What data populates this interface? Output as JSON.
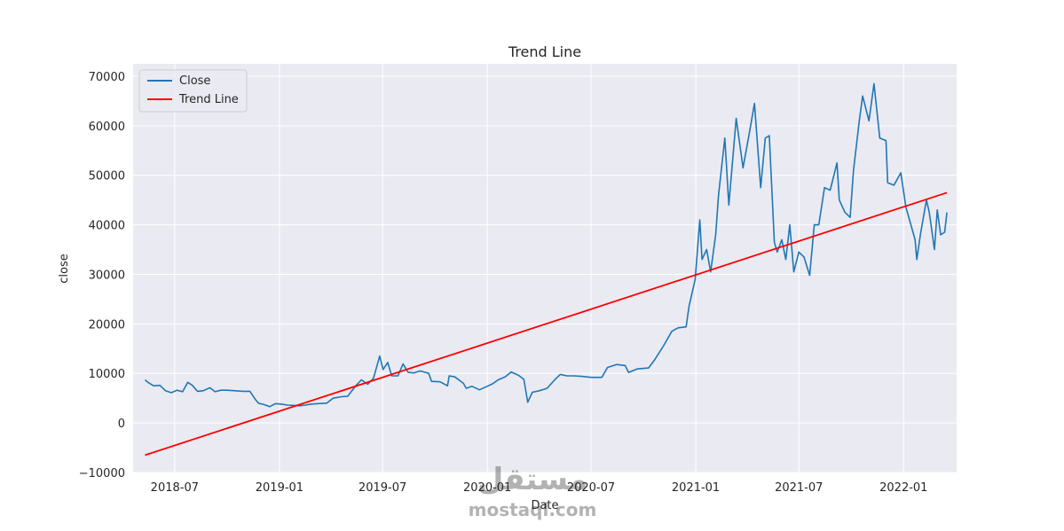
{
  "chart_data": {
    "type": "line",
    "title": "Trend Line",
    "xlabel": "Date",
    "ylabel": "close",
    "xlim": [
      "2018-04-19",
      "2022-04-04"
    ],
    "ylim": [
      -10000,
      72500
    ],
    "grid": true,
    "legend_position": "top-left",
    "x_ticks": [
      {
        "date": "2018-07-01",
        "label": "2018-07"
      },
      {
        "date": "2019-01-01",
        "label": "2019-01"
      },
      {
        "date": "2019-07-01",
        "label": "2019-07"
      },
      {
        "date": "2020-01-01",
        "label": "2020-01"
      },
      {
        "date": "2020-07-01",
        "label": "2020-07"
      },
      {
        "date": "2021-01-01",
        "label": "2021-01"
      },
      {
        "date": "2021-07-01",
        "label": "2021-07"
      },
      {
        "date": "2022-01-01",
        "label": "2022-01"
      }
    ],
    "y_ticks": [
      {
        "value": -10000,
        "label": "−10000"
      },
      {
        "value": 0,
        "label": "0"
      },
      {
        "value": 10000,
        "label": "10000"
      },
      {
        "value": 20000,
        "label": "20000"
      },
      {
        "value": 30000,
        "label": "30000"
      },
      {
        "value": 40000,
        "label": "40000"
      },
      {
        "value": 50000,
        "label": "50000"
      },
      {
        "value": 60000,
        "label": "60000"
      },
      {
        "value": 70000,
        "label": "70000"
      }
    ],
    "series": [
      {
        "name": "Close",
        "color": "#1f77b4",
        "points": [
          [
            "2018-05-10",
            8700
          ],
          [
            "2018-05-15",
            8200
          ],
          [
            "2018-05-25",
            7500
          ],
          [
            "2018-06-05",
            7600
          ],
          [
            "2018-06-15",
            6500
          ],
          [
            "2018-06-25",
            6100
          ],
          [
            "2018-07-05",
            6600
          ],
          [
            "2018-07-15",
            6300
          ],
          [
            "2018-07-24",
            8200
          ],
          [
            "2018-08-01",
            7600
          ],
          [
            "2018-08-10",
            6400
          ],
          [
            "2018-08-20",
            6500
          ],
          [
            "2018-09-01",
            7100
          ],
          [
            "2018-09-10",
            6300
          ],
          [
            "2018-09-20",
            6600
          ],
          [
            "2018-10-01",
            6600
          ],
          [
            "2018-10-15",
            6500
          ],
          [
            "2018-10-30",
            6400
          ],
          [
            "2018-11-10",
            6400
          ],
          [
            "2018-11-20",
            4700
          ],
          [
            "2018-11-25",
            4000
          ],
          [
            "2018-12-05",
            3700
          ],
          [
            "2018-12-15",
            3300
          ],
          [
            "2018-12-25",
            3900
          ],
          [
            "2019-01-05",
            3800
          ],
          [
            "2019-01-15",
            3600
          ],
          [
            "2019-01-25",
            3550
          ],
          [
            "2019-02-05",
            3450
          ],
          [
            "2019-02-15",
            3600
          ],
          [
            "2019-02-25",
            3800
          ],
          [
            "2019-03-10",
            3900
          ],
          [
            "2019-03-25",
            4000
          ],
          [
            "2019-04-05",
            5000
          ],
          [
            "2019-04-20",
            5300
          ],
          [
            "2019-05-01",
            5400
          ],
          [
            "2019-05-15",
            7500
          ],
          [
            "2019-05-25",
            8700
          ],
          [
            "2019-06-05",
            7800
          ],
          [
            "2019-06-15",
            9000
          ],
          [
            "2019-06-26",
            13500
          ],
          [
            "2019-07-02",
            10800
          ],
          [
            "2019-07-10",
            12200
          ],
          [
            "2019-07-17",
            9500
          ],
          [
            "2019-07-28",
            9500
          ],
          [
            "2019-08-06",
            11900
          ],
          [
            "2019-08-15",
            10200
          ],
          [
            "2019-08-25",
            10100
          ],
          [
            "2019-09-05",
            10500
          ],
          [
            "2019-09-20",
            10000
          ],
          [
            "2019-09-25",
            8400
          ],
          [
            "2019-10-10",
            8300
          ],
          [
            "2019-10-23",
            7500
          ],
          [
            "2019-10-26",
            9500
          ],
          [
            "2019-11-05",
            9300
          ],
          [
            "2019-11-20",
            8000
          ],
          [
            "2019-11-25",
            7000
          ],
          [
            "2019-12-05",
            7400
          ],
          [
            "2019-12-18",
            6700
          ],
          [
            "2019-12-30",
            7300
          ],
          [
            "2020-01-10",
            7900
          ],
          [
            "2020-01-20",
            8700
          ],
          [
            "2020-02-01",
            9300
          ],
          [
            "2020-02-12",
            10300
          ],
          [
            "2020-02-25",
            9600
          ],
          [
            "2020-03-05",
            8800
          ],
          [
            "2020-03-12",
            4200
          ],
          [
            "2020-03-20",
            6200
          ],
          [
            "2020-04-01",
            6500
          ],
          [
            "2020-04-15",
            7000
          ],
          [
            "2020-04-29",
            8800
          ],
          [
            "2020-05-08",
            9800
          ],
          [
            "2020-05-20",
            9500
          ],
          [
            "2020-06-01",
            9500
          ],
          [
            "2020-06-15",
            9400
          ],
          [
            "2020-07-01",
            9200
          ],
          [
            "2020-07-20",
            9200
          ],
          [
            "2020-07-30",
            11200
          ],
          [
            "2020-08-15",
            11800
          ],
          [
            "2020-08-30",
            11600
          ],
          [
            "2020-09-05",
            10200
          ],
          [
            "2020-09-20",
            10900
          ],
          [
            "2020-10-10",
            11100
          ],
          [
            "2020-10-21",
            12800
          ],
          [
            "2020-11-05",
            15500
          ],
          [
            "2020-11-20",
            18500
          ],
          [
            "2020-12-01",
            19200
          ],
          [
            "2020-12-15",
            19400
          ],
          [
            "2020-12-20",
            23500
          ],
          [
            "2020-12-31",
            29000
          ],
          [
            "2021-01-08",
            41000
          ],
          [
            "2021-01-12",
            33000
          ],
          [
            "2021-01-20",
            35000
          ],
          [
            "2021-01-27",
            30500
          ],
          [
            "2021-02-05",
            38000
          ],
          [
            "2021-02-10",
            46000
          ],
          [
            "2021-02-21",
            57500
          ],
          [
            "2021-02-28",
            44000
          ],
          [
            "2021-03-13",
            61500
          ],
          [
            "2021-03-25",
            51500
          ],
          [
            "2021-04-05",
            58500
          ],
          [
            "2021-04-14",
            64500
          ],
          [
            "2021-04-25",
            47500
          ],
          [
            "2021-05-03",
            57500
          ],
          [
            "2021-05-10",
            58000
          ],
          [
            "2021-05-19",
            36500
          ],
          [
            "2021-05-24",
            34500
          ],
          [
            "2021-06-01",
            37000
          ],
          [
            "2021-06-08",
            33000
          ],
          [
            "2021-06-15",
            40000
          ],
          [
            "2021-06-22",
            30500
          ],
          [
            "2021-07-01",
            34500
          ],
          [
            "2021-07-10",
            33500
          ],
          [
            "2021-07-20",
            29800
          ],
          [
            "2021-07-28",
            40000
          ],
          [
            "2021-08-05",
            40000
          ],
          [
            "2021-08-15",
            47500
          ],
          [
            "2021-08-25",
            47000
          ],
          [
            "2021-09-06",
            52500
          ],
          [
            "2021-09-10",
            45000
          ],
          [
            "2021-09-20",
            42500
          ],
          [
            "2021-09-29",
            41500
          ],
          [
            "2021-10-05",
            51000
          ],
          [
            "2021-10-15",
            61000
          ],
          [
            "2021-10-21",
            66000
          ],
          [
            "2021-11-01",
            61000
          ],
          [
            "2021-11-10",
            68500
          ],
          [
            "2021-11-20",
            57500
          ],
          [
            "2021-12-01",
            57000
          ],
          [
            "2021-12-04",
            48500
          ],
          [
            "2021-12-15",
            48000
          ],
          [
            "2021-12-27",
            50500
          ],
          [
            "2022-01-05",
            43500
          ],
          [
            "2022-01-10",
            41500
          ],
          [
            "2022-01-21",
            37000
          ],
          [
            "2022-01-24",
            33000
          ],
          [
            "2022-01-31",
            38500
          ],
          [
            "2022-02-10",
            45000
          ],
          [
            "2022-02-15",
            42500
          ],
          [
            "2022-02-24",
            35000
          ],
          [
            "2022-03-01",
            43000
          ],
          [
            "2022-03-07",
            38000
          ],
          [
            "2022-03-14",
            38500
          ],
          [
            "2022-03-18",
            42500
          ]
        ]
      },
      {
        "name": "Trend Line",
        "color": "#ff0000",
        "points": [
          [
            "2018-05-10",
            -6500
          ],
          [
            "2022-03-18",
            46500
          ]
        ]
      }
    ]
  },
  "watermark": {
    "arabic_text": "مستقل",
    "latin_text": "mostaql.com"
  }
}
